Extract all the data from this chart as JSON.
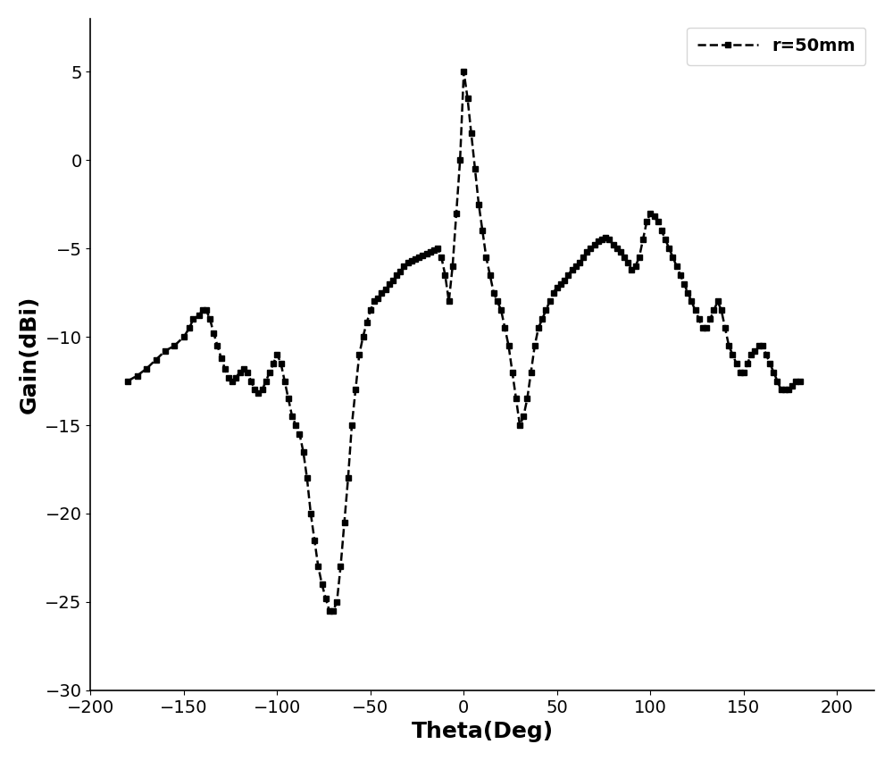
{
  "xlabel": "Theta(Deg)",
  "ylabel": "Gain(dBi)",
  "xlim": [
    -200,
    220
  ],
  "ylim": [
    -30,
    8
  ],
  "xticks": [
    -200,
    -150,
    -100,
    -50,
    0,
    50,
    100,
    150,
    200
  ],
  "yticks": [
    -30,
    -25,
    -20,
    -15,
    -10,
    -5,
    0,
    5
  ],
  "legend_label": "r=50mm",
  "line_color": "#000000",
  "marker": "s",
  "markersize": 5,
  "linewidth": 1.8,
  "line_style": "--",
  "background_color": "#ffffff",
  "theta": [
    -180,
    -175,
    -170,
    -165,
    -160,
    -155,
    -150,
    -147,
    -145,
    -142,
    -140,
    -138,
    -136,
    -134,
    -132,
    -130,
    -128,
    -126,
    -124,
    -122,
    -120,
    -118,
    -116,
    -114,
    -112,
    -110,
    -108,
    -106,
    -104,
    -102,
    -100,
    -98,
    -96,
    -94,
    -92,
    -90,
    -88,
    -86,
    -84,
    -82,
    -80,
    -78,
    -76,
    -74,
    -72,
    -70,
    -68,
    -66,
    -64,
    -62,
    -60,
    -58,
    -56,
    -54,
    -52,
    -50,
    -48,
    -46,
    -44,
    -42,
    -40,
    -38,
    -36,
    -34,
    -32,
    -30,
    -28,
    -26,
    -24,
    -22,
    -20,
    -18,
    -16,
    -14,
    -12,
    -10,
    -8,
    -6,
    -4,
    -2,
    0,
    2,
    4,
    6,
    8,
    10,
    12,
    14,
    16,
    18,
    20,
    22,
    24,
    26,
    28,
    30,
    32,
    34,
    36,
    38,
    40,
    42,
    44,
    46,
    48,
    50,
    52,
    54,
    56,
    58,
    60,
    62,
    64,
    66,
    68,
    70,
    72,
    74,
    76,
    78,
    80,
    82,
    84,
    86,
    88,
    90,
    92,
    94,
    96,
    98,
    100,
    102,
    104,
    106,
    108,
    110,
    112,
    114,
    116,
    118,
    120,
    122,
    124,
    126,
    128,
    130,
    132,
    134,
    136,
    138,
    140,
    142,
    144,
    146,
    148,
    150,
    152,
    154,
    156,
    158,
    160,
    162,
    164,
    166,
    168,
    170,
    172,
    174,
    176,
    178,
    180
  ],
  "gain": [
    -12.5,
    -12.2,
    -11.8,
    -11.3,
    -10.8,
    -10.5,
    -10.0,
    -9.5,
    -9.0,
    -8.8,
    -8.5,
    -8.5,
    -9.0,
    -9.8,
    -10.5,
    -11.2,
    -11.8,
    -12.3,
    -12.5,
    -12.3,
    -12.0,
    -11.8,
    -12.0,
    -12.5,
    -13.0,
    -13.2,
    -13.0,
    -12.5,
    -12.0,
    -11.5,
    -11.0,
    -11.5,
    -12.5,
    -13.5,
    -14.5,
    -15.0,
    -15.5,
    -16.5,
    -18.0,
    -20.0,
    -21.5,
    -23.0,
    -24.0,
    -24.8,
    -25.5,
    -25.5,
    -25.0,
    -23.0,
    -20.5,
    -18.0,
    -15.0,
    -13.0,
    -11.0,
    -10.0,
    -9.2,
    -8.5,
    -8.0,
    -7.8,
    -7.5,
    -7.3,
    -7.0,
    -6.8,
    -6.5,
    -6.3,
    -6.0,
    -5.8,
    -5.7,
    -5.6,
    -5.5,
    -5.4,
    -5.3,
    -5.2,
    -5.1,
    -5.0,
    -5.5,
    -6.5,
    -8.0,
    -6.0,
    -3.0,
    0.0,
    5.0,
    3.5,
    1.5,
    -0.5,
    -2.5,
    -4.0,
    -5.5,
    -6.5,
    -7.5,
    -8.0,
    -8.5,
    -9.5,
    -10.5,
    -12.0,
    -13.5,
    -15.0,
    -14.5,
    -13.5,
    -12.0,
    -10.5,
    -9.5,
    -9.0,
    -8.5,
    -8.0,
    -7.5,
    -7.2,
    -7.0,
    -6.8,
    -6.5,
    -6.2,
    -6.0,
    -5.8,
    -5.5,
    -5.2,
    -5.0,
    -4.8,
    -4.6,
    -4.5,
    -4.4,
    -4.5,
    -4.8,
    -5.0,
    -5.2,
    -5.5,
    -5.8,
    -6.2,
    -6.0,
    -5.5,
    -4.5,
    -3.5,
    -3.0,
    -3.2,
    -3.5,
    -4.0,
    -4.5,
    -5.0,
    -5.5,
    -6.0,
    -6.5,
    -7.0,
    -7.5,
    -8.0,
    -8.5,
    -9.0,
    -9.5,
    -9.5,
    -9.0,
    -8.5,
    -8.0,
    -8.5,
    -9.5,
    -10.5,
    -11.0,
    -11.5,
    -12.0,
    -12.0,
    -11.5,
    -11.0,
    -10.8,
    -10.5,
    -10.5,
    -11.0,
    -11.5,
    -12.0,
    -12.5,
    -13.0,
    -13.0,
    -13.0,
    -12.8,
    -12.5,
    -12.5
  ]
}
